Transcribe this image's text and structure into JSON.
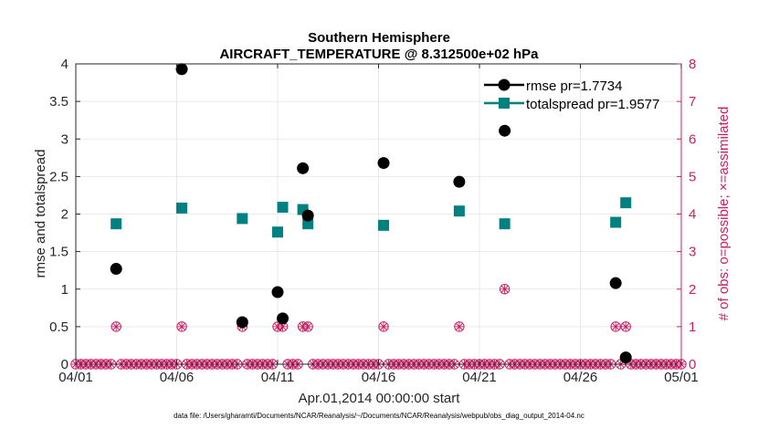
{
  "chart_data": {
    "type": "scatter",
    "title": "Southern Hemisphere",
    "subtitle": "AIRCRAFT_TEMPERATURE @ 8.312500e+02 hPa",
    "xlabel": "Apr.01,2014 00:00:00 start",
    "ylabel": "rmse and totalspread",
    "y2label": "# of obs: o=possible; ×=assimilated",
    "xlim": [
      0,
      30
    ],
    "ylim": [
      0,
      4
    ],
    "y2lim": [
      0,
      8
    ],
    "xticks": [
      0,
      5,
      10,
      15,
      20,
      25,
      30
    ],
    "xtick_labels": [
      "04/01",
      "04/06",
      "04/11",
      "04/16",
      "04/21",
      "04/26",
      "05/01"
    ],
    "yticks": [
      0,
      0.5,
      1,
      1.5,
      2,
      2.5,
      3,
      3.5,
      4
    ],
    "ytick_labels": [
      "0",
      "0.5",
      "1",
      "1.5",
      "2",
      "2.5",
      "3",
      "3.5",
      "4"
    ],
    "y2ticks": [
      0,
      1,
      2,
      3,
      4,
      5,
      6,
      7,
      8
    ],
    "y2tick_labels": [
      "0",
      "1",
      "2",
      "3",
      "4",
      "5",
      "6",
      "7",
      "8"
    ],
    "grid": true,
    "legend_position": "top-right",
    "series": [
      {
        "name": "rmse pr=1.7734",
        "color": "#000000",
        "x": [
          2,
          5.25,
          8.25,
          10,
          10.25,
          11.25,
          11.5,
          15.25,
          19,
          21.25,
          26.75,
          27.25
        ],
        "values": [
          1.27,
          3.93,
          0.56,
          0.96,
          0.61,
          2.61,
          1.98,
          2.68,
          2.43,
          3.11,
          1.08,
          0.09
        ]
      },
      {
        "name": "totalspread pr=1.9577",
        "color": "#008080",
        "x": [
          2,
          5.25,
          8.25,
          10,
          10.25,
          11.25,
          11.5,
          15.25,
          19,
          21.25,
          26.75,
          27.25
        ],
        "values": [
          1.87,
          2.08,
          1.94,
          1.76,
          2.09,
          2.06,
          1.87,
          1.85,
          2.04,
          1.87,
          1.89,
          2.15
        ]
      }
    ],
    "obs_possible": {
      "color": "#c81e64",
      "x": [
        2,
        5.25,
        8.25,
        10,
        10.25,
        11.25,
        11.5,
        15.25,
        19,
        21.25,
        26.75,
        27.25
      ],
      "values": [
        1,
        1,
        1,
        1,
        1,
        1,
        1,
        1,
        1,
        2,
        1,
        1
      ]
    },
    "obs_assimilated": {
      "color": "#c81e64",
      "x": [
        2,
        5.25,
        8.25,
        10,
        10.25,
        11.25,
        11.5,
        15.25,
        19,
        21.25,
        26.75,
        27.25
      ],
      "values": [
        1,
        1,
        1,
        1,
        1,
        1,
        1,
        1,
        1,
        2,
        1,
        1
      ]
    },
    "zero_marker_step": 0.25,
    "footnote": "data file: /Users/gharamti/Documents/NCAR/Reanalysis/~/Documents/NCAR/Reanalysis/webpub/obs_diag_output_2014-04.nc"
  }
}
